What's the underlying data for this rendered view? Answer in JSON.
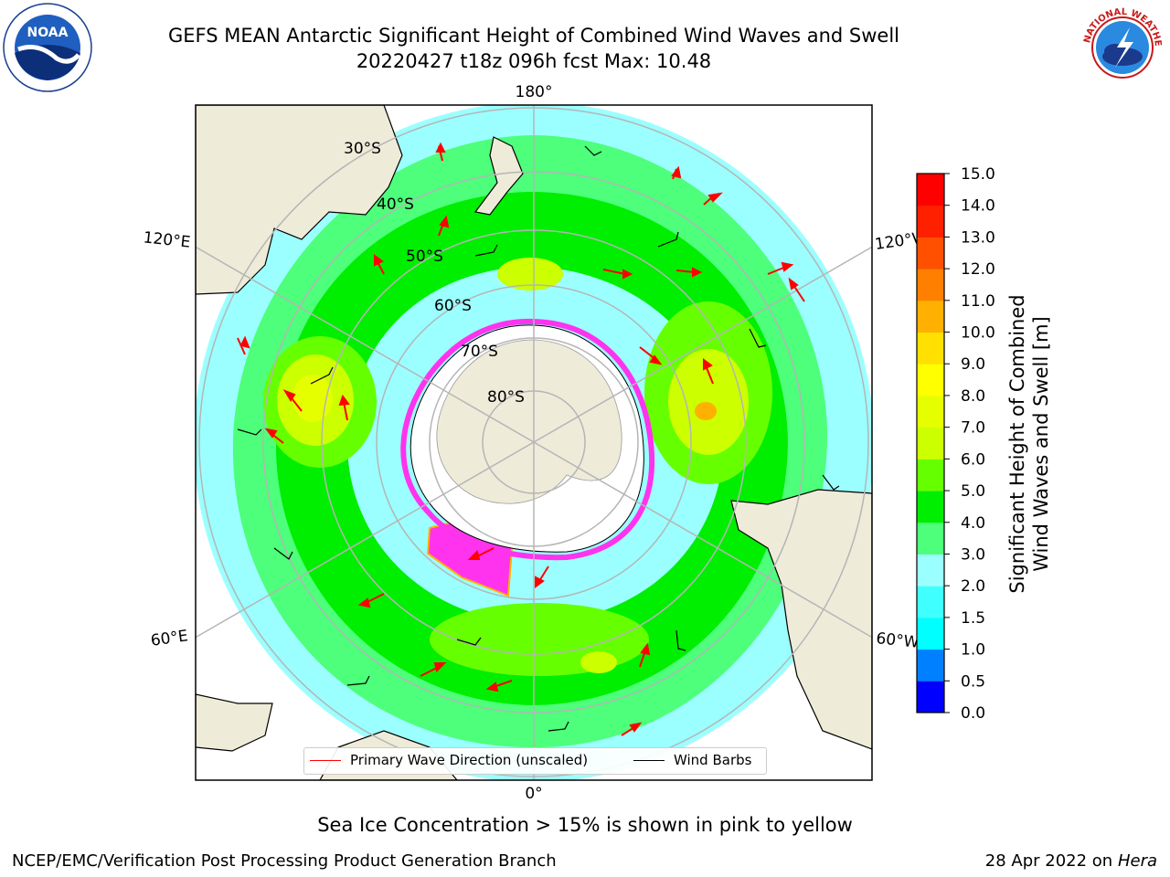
{
  "title_line1": "GEFS MEAN Antarctic Significant Height of Combined Wind Waves and Swell",
  "title_line2": "20220427 t18z 096h fcst   Max: 10.48",
  "logos": {
    "left": "noaa-logo",
    "right": "nws-logo",
    "left_text": "NOAA",
    "right_text": "NATIONAL WEATHER SERVICE"
  },
  "map": {
    "projection": "south-polar-stereographic",
    "longitude_labels": {
      "top": "180°",
      "bottom": "0°",
      "left_upper": "120°E",
      "left_lower": "60°E",
      "right_upper": "120°W",
      "right_lower": "60°W"
    },
    "latitude_labels": [
      "30°S",
      "40°S",
      "50°S",
      "60°S",
      "70°S",
      "80°S"
    ],
    "colors": {
      "land": "#eeebd9",
      "ice_cap": "#ffffff",
      "grid": "#b5b5b5",
      "coast": "#000000",
      "arrows": "#ff0000"
    }
  },
  "legend": {
    "wave_direction": "Primary Wave Direction (unscaled)",
    "wind_barbs": "Wind Barbs"
  },
  "colorbar": {
    "label_line1": "Significant Height of Combined",
    "label_line2": "Wind Waves and Swell [m]",
    "ticks": [
      "0.0",
      "0.5",
      "1.0",
      "1.5",
      "2.0",
      "3.0",
      "4.0",
      "5.0",
      "6.0",
      "7.0",
      "8.0",
      "9.0",
      "10.0",
      "11.0",
      "12.0",
      "13.0",
      "14.0",
      "15.0"
    ],
    "colors": [
      "#0000ff",
      "#0080ff",
      "#00ffff",
      "#40ffff",
      "#9cffff",
      "#4dff7a",
      "#00ee00",
      "#66ff00",
      "#ccff00",
      "#e6ff00",
      "#ffff00",
      "#ffe000",
      "#ffb000",
      "#ff8000",
      "#ff5000",
      "#ff2000",
      "#ff0000"
    ]
  },
  "note": "Sea Ice Concentration > 15% is shown in pink to yellow",
  "footer": {
    "left": "NCEP/EMC/Verification Post Processing Product Generation Branch",
    "right_prefix": "28 Apr 2022 on ",
    "right_italic": "Hera"
  }
}
